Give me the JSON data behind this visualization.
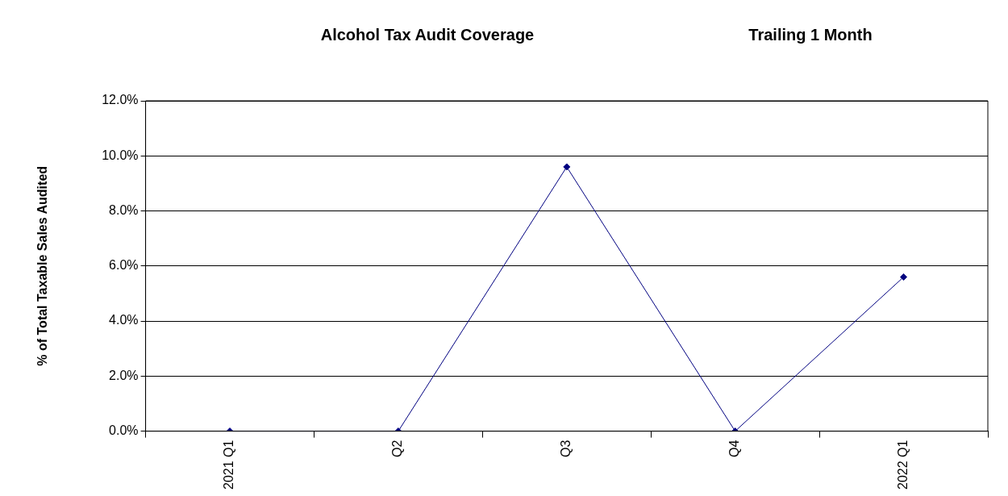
{
  "chart_data": {
    "type": "line",
    "title": "Alcohol Tax Audit Coverage",
    "subtitle": "Trailing 1 Month",
    "ylabel": "% of Total Taxable Sales Audited",
    "categories": [
      "2021 Q1",
      "Q2",
      "Q3",
      "Q4",
      "2022 Q1"
    ],
    "series": [
      {
        "color": "#000080",
        "values": [
          0,
          0,
          9.6,
          0,
          5.6
        ]
      }
    ],
    "ylim": [
      0,
      12
    ],
    "yticks": [
      {
        "value": 0,
        "label": "0.0%"
      },
      {
        "value": 2,
        "label": "2.0%"
      },
      {
        "value": 4,
        "label": "4.0%"
      },
      {
        "value": 6,
        "label": "6.0%"
      },
      {
        "value": 8,
        "label": "8.0%"
      },
      {
        "value": 10,
        "label": "10.0%"
      },
      {
        "value": 12,
        "label": "12.0%"
      }
    ],
    "grid": "y",
    "legend": false,
    "marker": "diamond",
    "line_style": "solid"
  }
}
